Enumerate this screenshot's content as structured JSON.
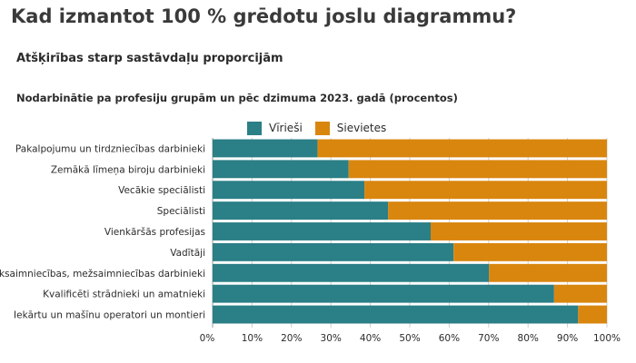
{
  "title": "Kad izmantot 100 % grēdotu joslu diagrammu?",
  "subtitle": "Atšķirības starp sastāvdaļu proporcijām",
  "colors": {
    "male": "#2b7f86",
    "female": "#d9860f",
    "grid": "#cfcfcf"
  },
  "chart_data": {
    "type": "bar",
    "orientation": "horizontal",
    "stacked": "100%",
    "title": "Nodarbinātie pa profesiju grupām un pēc dzimuma 2023. gadā (procentos)",
    "legend_position": "top",
    "categories": [
      "Pakalpojumu un tirdzniecības darbinieki",
      "Zemākā līmeņa biroju darbinieki",
      "Vecākie speciālisti",
      "Speciālisti",
      "Vienkāršās profesijas",
      "Vadītāji",
      "Lauksaimniecības, mežsaimniecības darbinieki",
      "Kvalificēti strādnieki un amatnieki",
      "Iekārtu un mašīnu operatori un montieri"
    ],
    "series": [
      {
        "name": "Vīrieši",
        "values": [
          26.6,
          34.5,
          38.5,
          44.5,
          55.3,
          61.1,
          70.1,
          86.6,
          92.7
        ]
      },
      {
        "name": "Sievietes",
        "values": [
          73.4,
          65.5,
          61.5,
          55.5,
          44.7,
          38.9,
          29.9,
          13.4,
          7.3
        ]
      }
    ],
    "xlim": [
      0,
      100
    ],
    "xticks": [
      "0%",
      "10%",
      "20%",
      "30%",
      "40%",
      "50%",
      "60%",
      "70%",
      "80%",
      "90%",
      "100%"
    ],
    "grid": true
  }
}
